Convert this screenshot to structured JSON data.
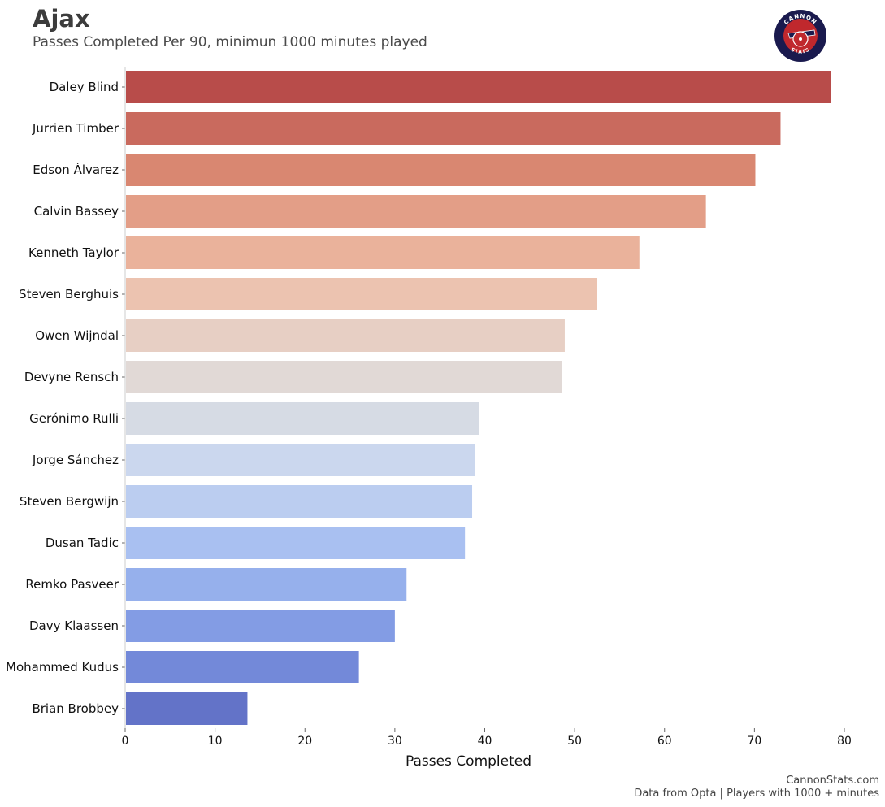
{
  "header": {
    "title": "Ajax",
    "subtitle": "Passes Completed Per 90, minimun 1000 minutes played"
  },
  "logo": {
    "top_text": "CANNON",
    "bottom_text": "STATS",
    "colors": {
      "ring": "#1a1a4e",
      "disc": "#c0282d",
      "accent": "#ffffff"
    }
  },
  "footer": {
    "line1": "CannonStats.com",
    "line2": "Data from Opta | Players with 1000 + minutes"
  },
  "chart_data": {
    "type": "bar",
    "orientation": "horizontal",
    "categories": [
      "Daley Blind",
      "Jurrien Timber",
      "Edson Álvarez",
      "Calvin Bassey",
      "Kenneth Taylor",
      "Steven Berghuis",
      "Owen Wijndal",
      "Devyne Rensch",
      "Gerónimo Rulli",
      "Jorge Sánchez",
      "Steven Bergwijn",
      "Dusan Tadic",
      "Remko Pasveer",
      "Davy Klaassen",
      "Mohammed Kudus",
      "Brian Brobbey"
    ],
    "values": [
      78.5,
      72.9,
      70.1,
      64.6,
      57.2,
      52.5,
      48.9,
      48.6,
      39.4,
      38.9,
      38.6,
      37.8,
      31.3,
      30.0,
      26.0,
      13.6
    ],
    "colors": [
      "#b84c4a",
      "#c96a5e",
      "#d98771",
      "#e39e87",
      "#eab29b",
      "#ecc3b0",
      "#e7cfc4",
      "#e1d9d6",
      "#d6dbe4",
      "#cbd7ee",
      "#bbcdf0",
      "#a9c0f1",
      "#96b0ec",
      "#839ce4",
      "#7389d9",
      "#6373c8"
    ],
    "xlabel": "Passes Completed",
    "xlim": [
      0,
      80
    ],
    "xticks": [
      "0",
      "10",
      "20",
      "30",
      "40",
      "50",
      "60",
      "70",
      "80"
    ],
    "grid": false
  }
}
